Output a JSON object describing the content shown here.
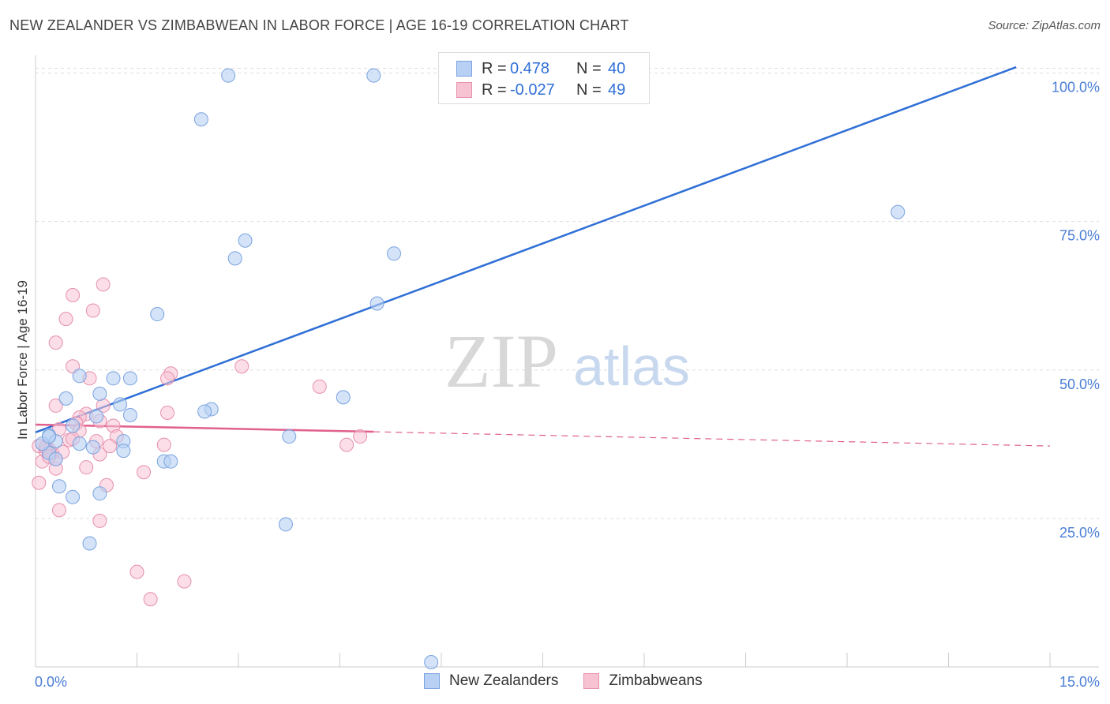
{
  "header": {
    "title": "NEW ZEALANDER VS ZIMBABWEAN IN LABOR FORCE | AGE 16-19 CORRELATION CHART",
    "source": "Source: ZipAtlas.com"
  },
  "legend": {
    "r_label": "R =",
    "n_label": "N =",
    "rows": [
      {
        "r": "0.478",
        "n": "40"
      },
      {
        "r": "-0.027",
        "n": "49"
      }
    ]
  },
  "watermark": {
    "zip": "ZIP",
    "atlas": "atlas"
  },
  "chart_data": {
    "type": "scatter",
    "title": "NEW ZEALANDER VS ZIMBABWEAN IN LABOR FORCE | AGE 16-19 CORRELATION CHART",
    "xlabel": "",
    "ylabel": "In Labor Force | Age 16-19",
    "xlim": [
      0,
      15
    ],
    "ylim": [
      0,
      103
    ],
    "x_tick_labels": [
      "0.0%",
      "15.0%"
    ],
    "y_ticks": [
      25,
      50,
      75,
      100
    ],
    "y_tick_labels": [
      "25.0%",
      "50.0%",
      "75.0%",
      "100.0%"
    ],
    "grid": true,
    "legend_position": "bottom",
    "colors": {
      "nz_fill": "#b8d0f3",
      "nz_stroke": "#7aa3e0",
      "nz_line": "#2f6fd6",
      "zw_fill": "#f7c3d3",
      "zw_stroke": "#e690ad",
      "zw_line": "#e0608e",
      "tick_label": "#4a7ed6",
      "grid": "#dddddd"
    },
    "series": [
      {
        "name": "New Zealanders",
        "r": 0.478,
        "n": 40,
        "trend": {
          "x0": 0,
          "y0": 39.5,
          "x1": 14.5,
          "y1": 101
        },
        "points": [
          [
            2.85,
            99.6
          ],
          [
            5.0,
            99.6
          ],
          [
            2.45,
            92.2
          ],
          [
            12.75,
            76.6
          ],
          [
            3.1,
            71.8
          ],
          [
            2.95,
            68.8
          ],
          [
            5.3,
            69.6
          ],
          [
            5.05,
            61.2
          ],
          [
            1.8,
            59.4
          ],
          [
            0.65,
            49.0
          ],
          [
            1.15,
            48.6
          ],
          [
            1.4,
            48.6
          ],
          [
            0.95,
            46.0
          ],
          [
            0.45,
            45.2
          ],
          [
            1.25,
            44.2
          ],
          [
            2.6,
            43.4
          ],
          [
            2.5,
            43.0
          ],
          [
            1.4,
            42.4
          ],
          [
            4.55,
            45.4
          ],
          [
            0.9,
            42.2
          ],
          [
            0.55,
            40.6
          ],
          [
            0.2,
            39.0
          ],
          [
            0.3,
            38.0
          ],
          [
            0.65,
            37.6
          ],
          [
            1.3,
            38.0
          ],
          [
            0.85,
            37.0
          ],
          [
            1.3,
            36.4
          ],
          [
            0.2,
            36.0
          ],
          [
            0.3,
            35.0
          ],
          [
            1.9,
            34.6
          ],
          [
            2.0,
            34.6
          ],
          [
            3.75,
            38.8
          ],
          [
            0.35,
            30.4
          ],
          [
            0.55,
            28.6
          ],
          [
            0.95,
            29.2
          ],
          [
            3.7,
            24.0
          ],
          [
            0.8,
            20.8
          ],
          [
            5.85,
            0.8
          ],
          [
            0.1,
            37.6
          ],
          [
            0.2,
            38.8
          ]
        ]
      },
      {
        "name": "Zimbabweans",
        "r": -0.027,
        "n": 49,
        "trend": {
          "x0": 0,
          "y0": 40.8,
          "x1": 5.0,
          "y1": 39.6
        },
        "trend_dashed": {
          "x0": 5.0,
          "y0": 39.6,
          "x1": 15,
          "y1": 37.2
        },
        "points": [
          [
            1.0,
            64.4
          ],
          [
            0.55,
            62.6
          ],
          [
            0.85,
            60.0
          ],
          [
            0.45,
            58.6
          ],
          [
            0.3,
            54.6
          ],
          [
            0.55,
            50.6
          ],
          [
            2.0,
            49.4
          ],
          [
            0.8,
            48.6
          ],
          [
            1.95,
            48.6
          ],
          [
            3.05,
            50.6
          ],
          [
            4.2,
            47.2
          ],
          [
            0.3,
            44.0
          ],
          [
            1.0,
            44.0
          ],
          [
            1.95,
            42.8
          ],
          [
            0.75,
            42.6
          ],
          [
            0.65,
            42.0
          ],
          [
            0.95,
            41.4
          ],
          [
            0.6,
            41.0
          ],
          [
            1.15,
            40.6
          ],
          [
            0.35,
            40.0
          ],
          [
            1.2,
            38.8
          ],
          [
            0.5,
            38.2
          ],
          [
            0.9,
            38.0
          ],
          [
            1.9,
            37.4
          ],
          [
            0.2,
            36.6
          ],
          [
            0.25,
            36.0
          ],
          [
            0.05,
            37.2
          ],
          [
            4.6,
            37.4
          ],
          [
            4.8,
            38.8
          ],
          [
            0.95,
            35.8
          ],
          [
            0.1,
            34.6
          ],
          [
            0.15,
            36.4
          ],
          [
            0.75,
            33.6
          ],
          [
            0.3,
            33.4
          ],
          [
            1.6,
            32.8
          ],
          [
            1.05,
            30.6
          ],
          [
            0.35,
            26.4
          ],
          [
            0.95,
            24.6
          ],
          [
            1.5,
            16.0
          ],
          [
            2.2,
            14.4
          ],
          [
            1.7,
            11.4
          ],
          [
            0.05,
            31.0
          ],
          [
            0.15,
            37.0
          ],
          [
            0.3,
            35.0
          ],
          [
            0.65,
            39.8
          ],
          [
            0.55,
            38.4
          ],
          [
            0.2,
            35.4
          ],
          [
            1.1,
            37.2
          ],
          [
            0.4,
            36.2
          ]
        ]
      }
    ]
  }
}
